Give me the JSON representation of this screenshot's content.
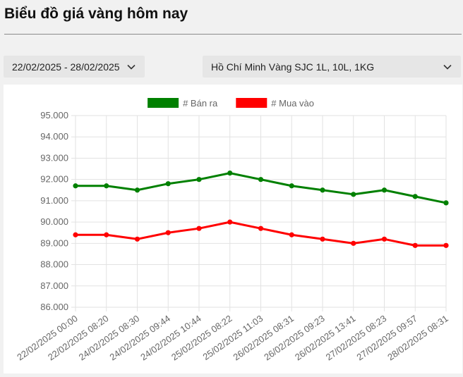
{
  "header": {
    "title": "Biểu đồ giá vàng hôm nay"
  },
  "filters": {
    "date_range": "22/02/2025 - 28/02/2025",
    "product": "Hồ Chí Minh Vàng SJC 1L, 10L, 1KG",
    "chevron_icon": "chevron-down-icon"
  },
  "chart_data": {
    "type": "line",
    "title": "",
    "xlabel": "",
    "ylabel": "",
    "ylim": [
      86000,
      95000
    ],
    "yticks": [
      "86.000",
      "87.000",
      "88.000",
      "89.000",
      "90.000",
      "91.000",
      "92.000",
      "93.000",
      "94.000",
      "95.000"
    ],
    "grid": true,
    "legend": "top-center",
    "categories": [
      "22/02/2025 00:00",
      "22/02/2025 08:20",
      "24/02/2025 08:30",
      "24/02/2025 09:44",
      "24/02/2025 10:44",
      "25/02/2025 08:22",
      "25/02/2025 11:03",
      "26/02/2025 08:31",
      "26/02/2025 09:23",
      "26/02/2025 13:41",
      "27/02/2025 08:23",
      "27/02/2025 09:57",
      "28/02/2025 08:31"
    ],
    "series": [
      {
        "name": "# Bán ra",
        "color": "#008000",
        "values": [
          91700,
          91700,
          91500,
          91800,
          92000,
          92300,
          92000,
          91700,
          91500,
          91300,
          91500,
          91200,
          90900
        ]
      },
      {
        "name": "# Mua vào",
        "color": "#ff0000",
        "values": [
          89400,
          89400,
          89200,
          89500,
          89700,
          90000,
          89700,
          89400,
          89200,
          89000,
          89200,
          88900,
          88900
        ]
      }
    ]
  }
}
